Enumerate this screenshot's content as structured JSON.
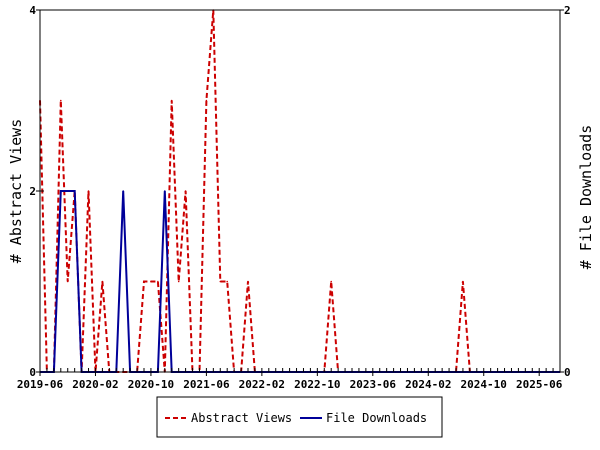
{
  "chart_data": {
    "type": "line",
    "x_axis": {
      "kind": "date",
      "start": "2019-06",
      "end": "2025-09",
      "tick_labels": [
        "2019-06",
        "2020-02",
        "2020-10",
        "2021-06",
        "2022-02",
        "2022-10",
        "2023-06",
        "2024-02",
        "2024-10",
        "2025-06"
      ]
    },
    "y_left": {
      "label": "# Abstract Views",
      "ylim": [
        0,
        4
      ],
      "ticks": [
        0,
        2,
        4
      ]
    },
    "y_right": {
      "label": "# File Downloads",
      "ylim": [
        0,
        2
      ],
      "ticks": [
        0,
        2
      ]
    },
    "legend": {
      "placement": "bottom"
    },
    "series": [
      {
        "name": "Abstract Views",
        "axis": "left",
        "style": "dashed",
        "color": "#cc0000",
        "points": [
          [
            "2019-06",
            3
          ],
          [
            "2019-07",
            0
          ],
          [
            "2019-08",
            0
          ],
          [
            "2019-09",
            3
          ],
          [
            "2019-10",
            1
          ],
          [
            "2019-11",
            2
          ],
          [
            "2019-12",
            0
          ],
          [
            "2020-01",
            2
          ],
          [
            "2020-02",
            0
          ],
          [
            "2020-03",
            1
          ],
          [
            "2020-04",
            0
          ],
          [
            "2020-05",
            0
          ],
          [
            "2020-06",
            0
          ],
          [
            "2020-07",
            0
          ],
          [
            "2020-08",
            0
          ],
          [
            "2020-09",
            1
          ],
          [
            "2020-10",
            1
          ],
          [
            "2020-11",
            1
          ],
          [
            "2020-12",
            0
          ],
          [
            "2021-01",
            3
          ],
          [
            "2021-02",
            1
          ],
          [
            "2021-03",
            2
          ],
          [
            "2021-04",
            0
          ],
          [
            "2021-05",
            0
          ],
          [
            "2021-06",
            3
          ],
          [
            "2021-07",
            4
          ],
          [
            "2021-08",
            1
          ],
          [
            "2021-09",
            1
          ],
          [
            "2021-10",
            0
          ],
          [
            "2021-11",
            0
          ],
          [
            "2021-12",
            1
          ],
          [
            "2022-01",
            0
          ],
          [
            "2022-02",
            0
          ],
          [
            "2022-03",
            0
          ],
          [
            "2022-04",
            0
          ],
          [
            "2022-05",
            0
          ],
          [
            "2022-06",
            0
          ],
          [
            "2022-07",
            0
          ],
          [
            "2022-08",
            0
          ],
          [
            "2022-09",
            0
          ],
          [
            "2022-10",
            0
          ],
          [
            "2022-11",
            0
          ],
          [
            "2022-12",
            1
          ],
          [
            "2023-01",
            0
          ],
          [
            "2023-02",
            0
          ],
          [
            "2023-03",
            0
          ],
          [
            "2023-04",
            0
          ],
          [
            "2023-05",
            0
          ],
          [
            "2023-06",
            0
          ],
          [
            "2023-07",
            0
          ],
          [
            "2023-08",
            0
          ],
          [
            "2023-09",
            0
          ],
          [
            "2023-10",
            0
          ],
          [
            "2023-11",
            0
          ],
          [
            "2023-12",
            0
          ],
          [
            "2024-01",
            0
          ],
          [
            "2024-02",
            0
          ],
          [
            "2024-03",
            0
          ],
          [
            "2024-04",
            0
          ],
          [
            "2024-05",
            0
          ],
          [
            "2024-06",
            0
          ],
          [
            "2024-07",
            1
          ],
          [
            "2024-08",
            0
          ],
          [
            "2024-09",
            0
          ],
          [
            "2024-10",
            0
          ],
          [
            "2024-11",
            0
          ],
          [
            "2024-12",
            0
          ],
          [
            "2025-01",
            0
          ],
          [
            "2025-02",
            0
          ],
          [
            "2025-03",
            0
          ],
          [
            "2025-04",
            0
          ],
          [
            "2025-05",
            0
          ],
          [
            "2025-06",
            0
          ],
          [
            "2025-07",
            0
          ],
          [
            "2025-08",
            0
          ],
          [
            "2025-09",
            0
          ]
        ]
      },
      {
        "name": "File Downloads",
        "axis": "right",
        "style": "solid",
        "color": "#000099",
        "points": [
          [
            "2019-06",
            0
          ],
          [
            "2019-07",
            0
          ],
          [
            "2019-08",
            0
          ],
          [
            "2019-09",
            1
          ],
          [
            "2019-10",
            1
          ],
          [
            "2019-11",
            1
          ],
          [
            "2019-12",
            0
          ],
          [
            "2020-01",
            0
          ],
          [
            "2020-02",
            0
          ],
          [
            "2020-03",
            0
          ],
          [
            "2020-04",
            0
          ],
          [
            "2020-05",
            0
          ],
          [
            "2020-06",
            1
          ],
          [
            "2020-07",
            0
          ],
          [
            "2020-08",
            0
          ],
          [
            "2020-09",
            0
          ],
          [
            "2020-10",
            0
          ],
          [
            "2020-11",
            0
          ],
          [
            "2020-12",
            1
          ],
          [
            "2021-01",
            0
          ],
          [
            "2021-02",
            0
          ],
          [
            "2021-03",
            0
          ],
          [
            "2021-04",
            0
          ],
          [
            "2021-05",
            0
          ],
          [
            "2021-06",
            0
          ],
          [
            "2021-07",
            0
          ],
          [
            "2021-08",
            0
          ],
          [
            "2021-09",
            0
          ],
          [
            "2021-10",
            0
          ],
          [
            "2021-11",
            0
          ],
          [
            "2021-12",
            0
          ],
          [
            "2022-01",
            0
          ],
          [
            "2022-02",
            0
          ],
          [
            "2022-03",
            0
          ],
          [
            "2022-04",
            0
          ],
          [
            "2022-05",
            0
          ],
          [
            "2022-06",
            0
          ],
          [
            "2022-07",
            0
          ],
          [
            "2022-08",
            0
          ],
          [
            "2022-09",
            0
          ],
          [
            "2022-10",
            0
          ],
          [
            "2022-11",
            0
          ],
          [
            "2022-12",
            0
          ],
          [
            "2023-01",
            0
          ],
          [
            "2023-02",
            0
          ],
          [
            "2023-03",
            0
          ],
          [
            "2023-04",
            0
          ],
          [
            "2023-05",
            0
          ],
          [
            "2023-06",
            0
          ],
          [
            "2023-07",
            0
          ],
          [
            "2023-08",
            0
          ],
          [
            "2023-09",
            0
          ],
          [
            "2023-10",
            0
          ],
          [
            "2023-11",
            0
          ],
          [
            "2023-12",
            0
          ],
          [
            "2024-01",
            0
          ],
          [
            "2024-02",
            0
          ],
          [
            "2024-03",
            0
          ],
          [
            "2024-04",
            0
          ],
          [
            "2024-05",
            0
          ],
          [
            "2024-06",
            0
          ],
          [
            "2024-07",
            0
          ],
          [
            "2024-08",
            0
          ],
          [
            "2024-09",
            0
          ],
          [
            "2024-10",
            0
          ],
          [
            "2024-11",
            0
          ],
          [
            "2024-12",
            0
          ],
          [
            "2025-01",
            0
          ],
          [
            "2025-02",
            0
          ],
          [
            "2025-03",
            0
          ],
          [
            "2025-04",
            0
          ],
          [
            "2025-05",
            0
          ],
          [
            "2025-06",
            0
          ],
          [
            "2025-07",
            0
          ],
          [
            "2025-08",
            0
          ],
          [
            "2025-09",
            0
          ]
        ]
      }
    ]
  }
}
